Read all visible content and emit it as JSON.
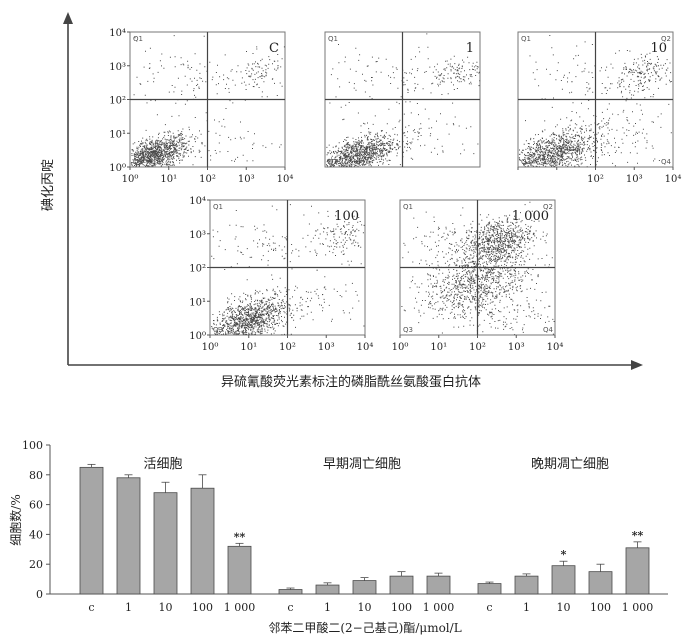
{
  "flow": {
    "y_axis_label": "碘化丙啶",
    "x_axis_label": "异硫氰酸荧光素标注的磷脂酰丝氨酸蛋白抗体",
    "quadrant_labels": [
      "Q1",
      "Q2",
      "Q3",
      "Q4"
    ],
    "tick_labels": [
      "10⁰",
      "10¹",
      "10²",
      "10³",
      "10⁴"
    ],
    "panels": [
      {
        "label": "C"
      },
      {
        "label": "1"
      },
      {
        "label": "10"
      },
      {
        "label": "100"
      },
      {
        "label": "1 000"
      }
    ]
  },
  "chart_data": {
    "type": "bar",
    "title": "",
    "xlabel": "邻苯二甲酸二(2−己基己)酯/μmol/L",
    "ylabel": "细胞数/%",
    "ylim": [
      0,
      100
    ],
    "yticks": [
      0,
      20,
      40,
      60,
      80,
      100
    ],
    "groups": [
      {
        "name": "活细胞",
        "categories": [
          "c",
          "1",
          "10",
          "100",
          "1 000"
        ],
        "values": [
          85,
          78,
          68,
          71,
          32
        ],
        "errors": [
          2,
          2,
          7,
          9,
          2
        ],
        "significance": [
          "",
          "",
          "",
          "",
          "**"
        ]
      },
      {
        "name": "早期凋亡细胞",
        "categories": [
          "c",
          "1",
          "10",
          "100",
          "1 000"
        ],
        "values": [
          3,
          6,
          9,
          12,
          12
        ],
        "errors": [
          1,
          1.5,
          2,
          3,
          2
        ],
        "significance": [
          "",
          "",
          "",
          "",
          ""
        ]
      },
      {
        "name": "晚期凋亡细胞",
        "categories": [
          "c",
          "1",
          "10",
          "100",
          "1 000"
        ],
        "values": [
          7,
          12,
          19,
          15,
          31
        ],
        "errors": [
          1,
          1.5,
          3,
          5,
          4
        ],
        "significance": [
          "",
          "",
          "*",
          "",
          "**"
        ]
      }
    ],
    "colors": {
      "bar_fill": "#a6a6a6",
      "bar_stroke": "#4a4a4a",
      "axis": "#555555",
      "dot": "#4a4a4a",
      "gate": "#444444"
    }
  }
}
